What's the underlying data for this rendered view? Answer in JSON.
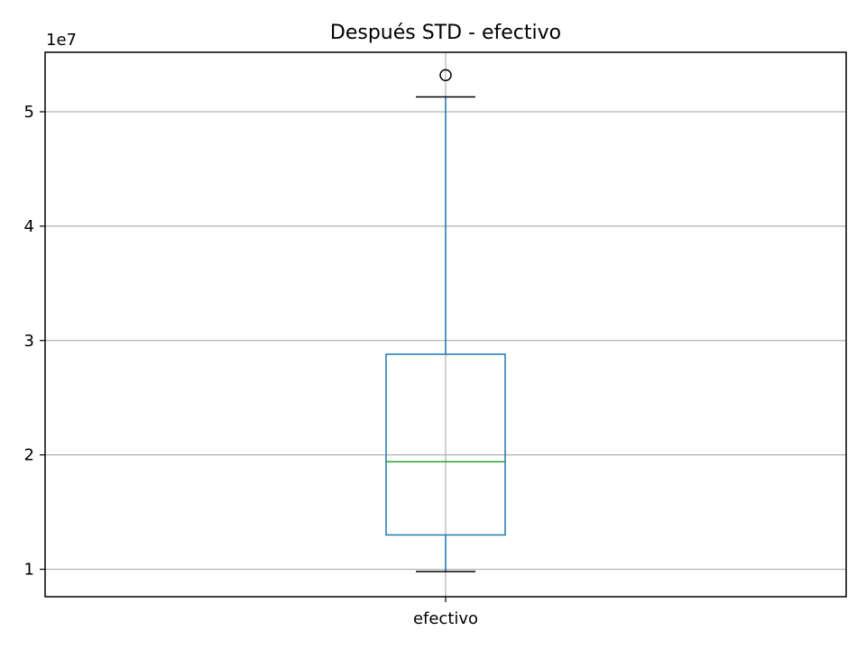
{
  "chart_data": {
    "type": "box",
    "title": "Después STD - efectivo",
    "xlabel": "",
    "ylabel": "",
    "categories": [
      "efectivo"
    ],
    "y_offset_label": "1e7",
    "y_scale": 10000000,
    "ylim": [
      7600000,
      55200000
    ],
    "yticks": [
      10000000,
      20000000,
      30000000,
      40000000,
      50000000
    ],
    "ytick_labels": [
      "1",
      "2",
      "3",
      "4",
      "5"
    ],
    "grid": true,
    "boxes": [
      {
        "category": "efectivo",
        "whisker_low": 9800000,
        "q1": 13000000,
        "median": 19400000,
        "q3": 28800000,
        "whisker_high": 51300000,
        "outliers": [
          53200000
        ]
      }
    ],
    "colors": {
      "box": "#1f77b4",
      "median": "#2ca02c",
      "cap": "#000000",
      "grid": "#b0b0b0",
      "outlier_edge": "#000000"
    }
  }
}
